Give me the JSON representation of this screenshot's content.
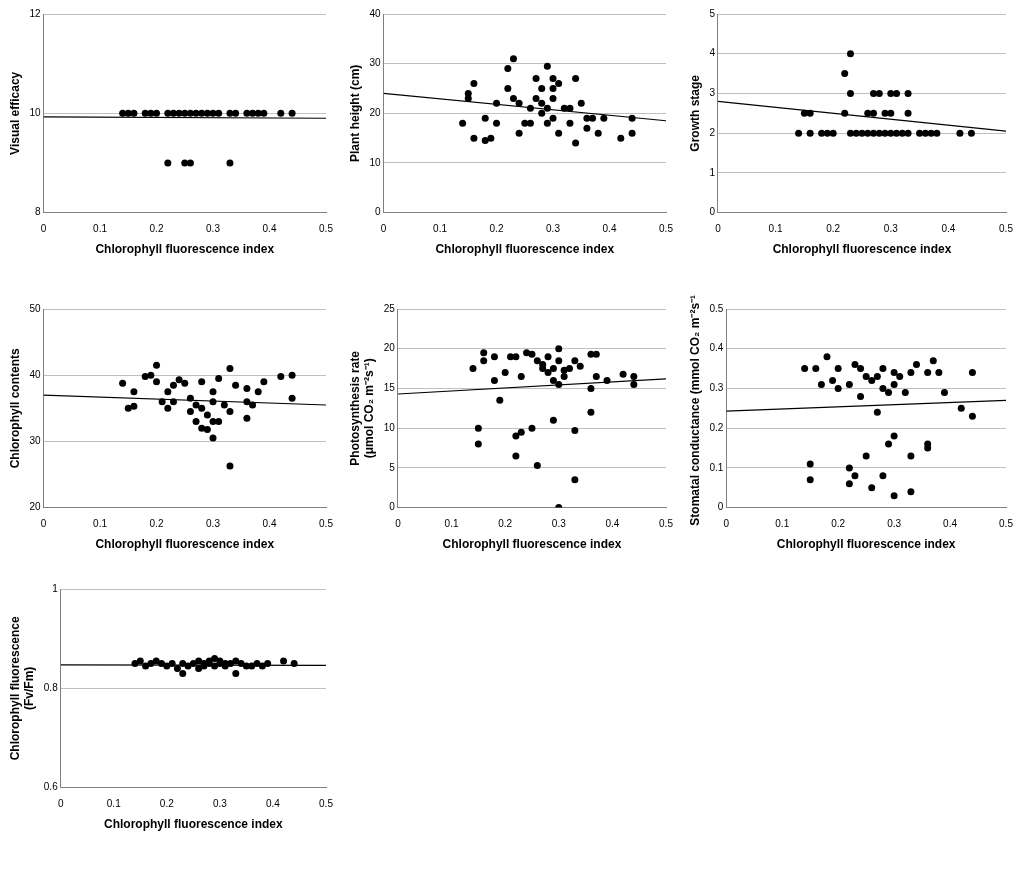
{
  "chart_data": [
    {
      "type": "scatter",
      "x_label": "Chlorophyll fluorescence index",
      "y_label": "Visual efficacy",
      "xlim": [
        0,
        0.5
      ],
      "xticks": [
        0,
        0.1,
        0.2,
        0.3,
        0.4,
        0.5
      ],
      "ylim": [
        8,
        12
      ],
      "yticks": [
        8,
        10,
        12
      ],
      "grid": true,
      "series": [
        {
          "type": "scatter",
          "color": "#000000",
          "marker": "circle",
          "x": [
            0.14,
            0.15,
            0.16,
            0.18,
            0.19,
            0.2,
            0.22,
            0.23,
            0.24,
            0.25,
            0.26,
            0.27,
            0.28,
            0.29,
            0.3,
            0.31,
            0.33,
            0.34,
            0.36,
            0.37,
            0.38,
            0.39,
            0.42,
            0.44,
            0.22,
            0.25,
            0.26,
            0.33
          ],
          "values": [
            10,
            10,
            10,
            10,
            10,
            10,
            10,
            10,
            10,
            10,
            10,
            10,
            10,
            10,
            10,
            10,
            10,
            10,
            10,
            10,
            10,
            10,
            10,
            10,
            9,
            9,
            9,
            9
          ]
        },
        {
          "type": "line",
          "color": "#000000",
          "line_style": "solid",
          "x": [
            0,
            0.5
          ],
          "values": [
            9.93,
            9.9
          ]
        }
      ]
    },
    {
      "type": "scatter",
      "x_label": "Chlorophyll fluorescence index",
      "y_label": "Plant height (cm)",
      "xlim": [
        0,
        0.5
      ],
      "xticks": [
        0,
        0.1,
        0.2,
        0.3,
        0.4,
        0.5
      ],
      "ylim": [
        0,
        40
      ],
      "yticks": [
        0,
        10,
        20,
        30,
        40
      ],
      "grid": true,
      "series": [
        {
          "type": "scatter",
          "color": "#000000",
          "marker": "circle",
          "x": [
            0.14,
            0.15,
            0.15,
            0.16,
            0.16,
            0.18,
            0.18,
            0.19,
            0.2,
            0.2,
            0.22,
            0.22,
            0.23,
            0.23,
            0.24,
            0.24,
            0.25,
            0.26,
            0.26,
            0.27,
            0.27,
            0.28,
            0.28,
            0.28,
            0.29,
            0.29,
            0.29,
            0.3,
            0.3,
            0.3,
            0.3,
            0.31,
            0.31,
            0.32,
            0.33,
            0.33,
            0.34,
            0.34,
            0.35,
            0.36,
            0.36,
            0.37,
            0.38,
            0.39,
            0.42,
            0.44,
            0.44
          ],
          "values": [
            18,
            23,
            24,
            26,
            15,
            19,
            14.5,
            15,
            18,
            22,
            25,
            29,
            31,
            23,
            16,
            22,
            18,
            21,
            18,
            27,
            23,
            20,
            25,
            22,
            18,
            21,
            29.5,
            27,
            25,
            19,
            23,
            26,
            16,
            21,
            18,
            21,
            27,
            14,
            22,
            17,
            19,
            19,
            16,
            19,
            15,
            19,
            16
          ]
        },
        {
          "type": "line",
          "color": "#000000",
          "line_style": "solid",
          "x": [
            0,
            0.5
          ],
          "values": [
            24,
            18.5
          ]
        }
      ]
    },
    {
      "type": "scatter",
      "x_label": "Chlorophyll fluorescence index",
      "y_label": "Growth stage",
      "xlim": [
        0,
        0.5
      ],
      "xticks": [
        0,
        0.1,
        0.2,
        0.3,
        0.4,
        0.5
      ],
      "ylim": [
        0,
        5
      ],
      "yticks": [
        0,
        1,
        2,
        3,
        4,
        5
      ],
      "grid": true,
      "series": [
        {
          "type": "scatter",
          "color": "#000000",
          "marker": "circle",
          "x": [
            0.14,
            0.16,
            0.18,
            0.19,
            0.2,
            0.23,
            0.24,
            0.25,
            0.26,
            0.27,
            0.28,
            0.29,
            0.3,
            0.31,
            0.32,
            0.33,
            0.35,
            0.36,
            0.37,
            0.38,
            0.42,
            0.44,
            0.15,
            0.16,
            0.22,
            0.26,
            0.27,
            0.29,
            0.3,
            0.33,
            0.23,
            0.27,
            0.28,
            0.3,
            0.31,
            0.33,
            0.22,
            0.23
          ],
          "values": [
            2,
            2,
            2,
            2,
            2,
            2,
            2,
            2,
            2,
            2,
            2,
            2,
            2,
            2,
            2,
            2,
            2,
            2,
            2,
            2,
            2,
            2,
            2.5,
            2.5,
            2.5,
            2.5,
            2.5,
            2.5,
            2.5,
            2.5,
            3,
            3,
            3,
            3,
            3,
            3,
            3.5,
            4
          ]
        },
        {
          "type": "line",
          "color": "#000000",
          "line_style": "solid",
          "x": [
            0,
            0.5
          ],
          "values": [
            2.8,
            2.05
          ]
        }
      ]
    },
    {
      "type": "scatter",
      "x_label": "Chlorophyll fluorescence index",
      "y_label": "Chlorophyll contents",
      "xlim": [
        0,
        0.5
      ],
      "xticks": [
        0,
        0.1,
        0.2,
        0.3,
        0.4,
        0.5
      ],
      "ylim": [
        20,
        50
      ],
      "yticks": [
        20,
        30,
        40,
        50
      ],
      "grid": true,
      "series": [
        {
          "type": "scatter",
          "color": "#000000",
          "marker": "circle",
          "x": [
            0.14,
            0.15,
            0.16,
            0.16,
            0.18,
            0.19,
            0.2,
            0.2,
            0.21,
            0.22,
            0.22,
            0.23,
            0.23,
            0.24,
            0.25,
            0.26,
            0.26,
            0.27,
            0.27,
            0.28,
            0.28,
            0.28,
            0.29,
            0.29,
            0.3,
            0.3,
            0.3,
            0.3,
            0.31,
            0.31,
            0.32,
            0.33,
            0.33,
            0.33,
            0.34,
            0.36,
            0.36,
            0.36,
            0.37,
            0.38,
            0.39,
            0.42,
            0.44,
            0.44
          ],
          "values": [
            38.8,
            35,
            35.3,
            37.5,
            39.8,
            40,
            39,
            41.5,
            36,
            35,
            37.5,
            38.5,
            36,
            39.3,
            38.8,
            36.5,
            34.5,
            33,
            35.5,
            32,
            35,
            39,
            31.8,
            34,
            30.5,
            33,
            36,
            37.5,
            33,
            39.5,
            35.5,
            41,
            34.5,
            26.3,
            38.5,
            38,
            36,
            33.5,
            35.5,
            37.5,
            39,
            39.8,
            40,
            36.5
          ]
        },
        {
          "type": "line",
          "color": "#000000",
          "line_style": "solid",
          "x": [
            0,
            0.5
          ],
          "values": [
            37,
            35.5
          ]
        }
      ]
    },
    {
      "type": "scatter",
      "x_label": "Chlorophyll fluorescence index",
      "y_label": [
        "Photosynthesis rate",
        "(μmol CO₂ m⁻²s⁻¹)"
      ],
      "xlim": [
        0,
        0.5
      ],
      "xticks": [
        0,
        0.1,
        0.2,
        0.3,
        0.4,
        0.5
      ],
      "ylim": [
        0,
        25
      ],
      "yticks": [
        0,
        5,
        10,
        15,
        20,
        25
      ],
      "grid": true,
      "series": [
        {
          "type": "scatter",
          "color": "#000000",
          "marker": "circle",
          "x": [
            0.14,
            0.15,
            0.15,
            0.16,
            0.16,
            0.18,
            0.18,
            0.19,
            0.2,
            0.21,
            0.22,
            0.22,
            0.22,
            0.23,
            0.23,
            0.24,
            0.25,
            0.25,
            0.26,
            0.26,
            0.27,
            0.27,
            0.28,
            0.28,
            0.29,
            0.29,
            0.29,
            0.3,
            0.3,
            0.3,
            0.3,
            0.31,
            0.31,
            0.32,
            0.33,
            0.33,
            0.33,
            0.34,
            0.36,
            0.36,
            0.36,
            0.37,
            0.37,
            0.39,
            0.42,
            0.44,
            0.44
          ],
          "values": [
            17.5,
            10,
            8,
            18.5,
            19.5,
            19,
            16,
            13.5,
            17,
            19,
            9,
            6.5,
            19,
            9.5,
            16.5,
            19.5,
            19.3,
            10,
            18.5,
            5.3,
            18,
            17.5,
            17,
            19,
            16,
            11,
            17.5,
            20,
            18.5,
            0,
            15.5,
            17.3,
            16.5,
            17.5,
            18.5,
            9.7,
            3.5,
            17.8,
            19.3,
            12,
            15,
            19.3,
            16.5,
            16,
            16.8,
            16.5,
            15.5
          ]
        },
        {
          "type": "line",
          "color": "#000000",
          "line_style": "solid",
          "x": [
            0,
            0.5
          ],
          "values": [
            14.3,
            16.2
          ]
        }
      ]
    },
    {
      "type": "scatter",
      "x_label": "Chlorophyll fluorescence index",
      "y_label": "Stomatal conductance (mmol CO₂ m⁻²s⁻¹)",
      "xlim": [
        0,
        0.5
      ],
      "xticks": [
        0,
        0.1,
        0.2,
        0.3,
        0.4,
        0.5
      ],
      "ylim": [
        0,
        0.5
      ],
      "yticks": [
        0,
        0.1,
        0.2,
        0.3,
        0.4,
        0.5
      ],
      "grid": true,
      "series": [
        {
          "type": "scatter",
          "color": "#000000",
          "marker": "circle",
          "x": [
            0.14,
            0.15,
            0.15,
            0.16,
            0.17,
            0.18,
            0.19,
            0.2,
            0.2,
            0.22,
            0.22,
            0.22,
            0.23,
            0.23,
            0.24,
            0.24,
            0.25,
            0.25,
            0.26,
            0.26,
            0.27,
            0.27,
            0.28,
            0.28,
            0.28,
            0.29,
            0.29,
            0.3,
            0.3,
            0.3,
            0.3,
            0.31,
            0.32,
            0.33,
            0.33,
            0.33,
            0.34,
            0.36,
            0.36,
            0.36,
            0.37,
            0.38,
            0.39,
            0.42,
            0.44,
            0.44
          ],
          "values": [
            0.35,
            0.11,
            0.07,
            0.35,
            0.31,
            0.38,
            0.32,
            0.35,
            0.3,
            0.31,
            0.06,
            0.1,
            0.36,
            0.08,
            0.35,
            0.28,
            0.33,
            0.13,
            0.05,
            0.32,
            0.24,
            0.33,
            0.3,
            0.08,
            0.35,
            0.29,
            0.16,
            0.34,
            0.03,
            0.31,
            0.18,
            0.33,
            0.29,
            0.34,
            0.04,
            0.13,
            0.36,
            0.34,
            0.16,
            0.15,
            0.37,
            0.34,
            0.29,
            0.25,
            0.34,
            0.23
          ]
        },
        {
          "type": "line",
          "color": "#000000",
          "line_style": "solid",
          "x": [
            0,
            0.5
          ],
          "values": [
            0.243,
            0.27
          ]
        }
      ]
    },
    {
      "type": "scatter",
      "x_label": "Chlorophyll fluorescence index",
      "y_label": [
        "Chlorophyll fluorescence",
        "(Fv/Fm)"
      ],
      "xlim": [
        0,
        0.5
      ],
      "xticks": [
        0,
        0.1,
        0.2,
        0.3,
        0.4,
        0.5
      ],
      "ylim": [
        0.6,
        1
      ],
      "yticks": [
        0.6,
        0.8,
        1
      ],
      "grid": true,
      "series": [
        {
          "type": "scatter",
          "color": "#000000",
          "marker": "circle",
          "x": [
            0.14,
            0.15,
            0.16,
            0.17,
            0.18,
            0.19,
            0.2,
            0.21,
            0.22,
            0.23,
            0.23,
            0.24,
            0.25,
            0.26,
            0.26,
            0.27,
            0.27,
            0.28,
            0.28,
            0.29,
            0.29,
            0.3,
            0.3,
            0.31,
            0.31,
            0.32,
            0.33,
            0.33,
            0.34,
            0.35,
            0.36,
            0.37,
            0.38,
            0.39,
            0.42,
            0.44
          ],
          "values": [
            0.85,
            0.855,
            0.845,
            0.85,
            0.855,
            0.85,
            0.845,
            0.85,
            0.84,
            0.85,
            0.83,
            0.845,
            0.85,
            0.855,
            0.84,
            0.85,
            0.845,
            0.855,
            0.85,
            0.86,
            0.845,
            0.85,
            0.855,
            0.845,
            0.85,
            0.85,
            0.855,
            0.83,
            0.85,
            0.845,
            0.845,
            0.85,
            0.845,
            0.85,
            0.855,
            0.85
          ]
        },
        {
          "type": "line",
          "color": "#000000",
          "line_style": "solid",
          "x": [
            0,
            0.5
          ],
          "values": [
            0.847,
            0.846
          ]
        }
      ]
    }
  ]
}
